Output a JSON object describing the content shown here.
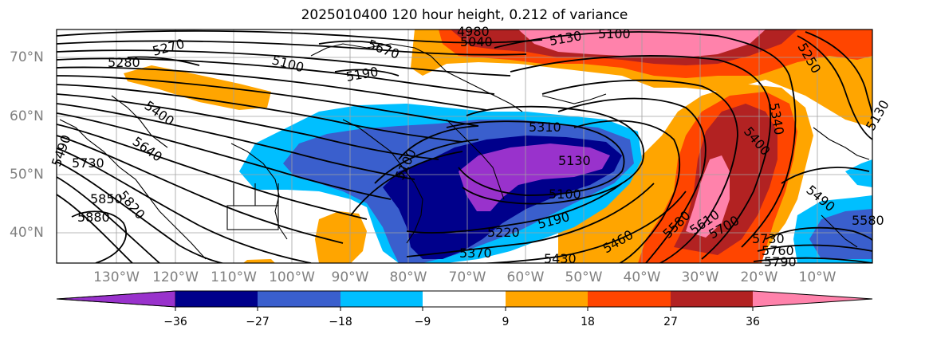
{
  "title": "2025010400 120 hour height, 0.212 of variance",
  "longitude_labels": [
    "130°W",
    "120°W",
    "110°W",
    "100°W",
    "90°W",
    "80°W",
    "70°W",
    "60°W",
    "50°W",
    "40°W",
    "30°W",
    "20°W",
    "10°W"
  ],
  "latitude_labels": [
    "70°N",
    "60°N",
    "50°N",
    "40°N"
  ],
  "colorbar": {
    "ticks": [
      "−36",
      "−27",
      "−18",
      "−9",
      "9",
      "18",
      "27",
      "36"
    ],
    "colors": [
      "#9932cc",
      "#00008b",
      "#3a5fcd",
      "#00bfff",
      "#ffffff",
      "#ffa500",
      "#ff4500",
      "#b22222",
      "#ff82ab"
    ]
  },
  "contour_labels": [
    "5280",
    "5270",
    "5100",
    "5190",
    "5670",
    "5040",
    "4980",
    "5130",
    "5100",
    "5250",
    "5400",
    "5490",
    "5640",
    "5730",
    "5850",
    "5820",
    "5880",
    "5100",
    "5310",
    "5130",
    "5100",
    "5190",
    "5220",
    "5370",
    "5430",
    "5460",
    "5340",
    "5400",
    "5490",
    "5580",
    "5610",
    "5700",
    "5730",
    "5760",
    "5790",
    "5580",
    "5130"
  ]
}
